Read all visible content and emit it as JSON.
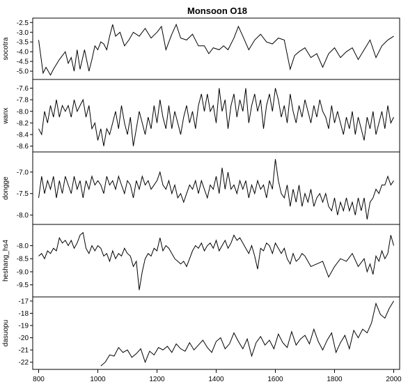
{
  "chart_data": {
    "type": "line",
    "title": "Monsoon O18",
    "xlim": [
      780,
      2020
    ],
    "xticks": [
      800,
      1000,
      1200,
      1400,
      1600,
      1800,
      2000
    ],
    "xtick_labels": [
      "800",
      "1000",
      "1200",
      "1400",
      "1600",
      "1800",
      "2000"
    ],
    "panels": [
      {
        "name": "socotra",
        "ylim": [
          -5.3,
          -2.4
        ],
        "yticks": [
          -2.5,
          -3.0,
          -3.5,
          -4.0,
          -4.5,
          -5.0
        ],
        "ytick_labels": [
          "-2.5",
          "-3.0",
          "-3.5",
          "-4.0",
          "-4.5",
          "-5.0"
        ],
        "x": [
          800,
          815,
          825,
          840,
          850,
          870,
          890,
          900,
          910,
          920,
          930,
          940,
          955,
          970,
          980,
          990,
          1000,
          1010,
          1020,
          1030,
          1040,
          1050,
          1060,
          1075,
          1090,
          1105,
          1120,
          1140,
          1160,
          1180,
          1200,
          1215,
          1230,
          1250,
          1265,
          1280,
          1300,
          1320,
          1340,
          1360,
          1375,
          1390,
          1410,
          1425,
          1440,
          1460,
          1475,
          1490,
          1510,
          1530,
          1550,
          1570,
          1590,
          1610,
          1630,
          1650,
          1665,
          1680,
          1700,
          1720,
          1740,
          1760,
          1780,
          1800,
          1820,
          1840,
          1860,
          1880,
          1900,
          1920,
          1940,
          1960,
          1980,
          2000
        ],
        "y": [
          -3.4,
          -5.1,
          -4.8,
          -5.2,
          -4.9,
          -4.4,
          -4.0,
          -4.6,
          -4.3,
          -5.0,
          -3.9,
          -4.9,
          -3.9,
          -5.0,
          -4.4,
          -3.7,
          -3.9,
          -3.5,
          -3.6,
          -3.9,
          -3.2,
          -2.6,
          -3.2,
          -3.0,
          -3.7,
          -3.4,
          -3.0,
          -3.2,
          -2.8,
          -3.3,
          -3.0,
          -2.7,
          -3.9,
          -3.1,
          -2.6,
          -3.3,
          -3.4,
          -3.1,
          -3.7,
          -3.7,
          -4.1,
          -3.8,
          -3.9,
          -3.7,
          -3.9,
          -3.3,
          -2.7,
          -3.2,
          -3.9,
          -3.4,
          -3.1,
          -3.5,
          -3.6,
          -3.3,
          -3.4,
          -4.9,
          -4.2,
          -4.0,
          -3.8,
          -4.3,
          -4.1,
          -4.8,
          -4.1,
          -3.8,
          -4.3,
          -4.0,
          -3.8,
          -4.4,
          -3.9,
          -3.4,
          -4.3,
          -3.7,
          -3.4,
          -3.2
        ]
      },
      {
        "name": "wanx",
        "ylim": [
          -8.65,
          -7.5
        ],
        "yticks": [
          -7.6,
          -7.8,
          -8.0,
          -8.2,
          -8.4,
          -8.6
        ],
        "ytick_labels": [
          "-7.6",
          "-7.8",
          "-8.0",
          "-8.2",
          "-8.4",
          "-8.6"
        ],
        "x": [
          800,
          810,
          820,
          830,
          840,
          850,
          860,
          870,
          880,
          890,
          900,
          910,
          920,
          930,
          940,
          950,
          960,
          970,
          980,
          990,
          1000,
          1010,
          1020,
          1030,
          1040,
          1050,
          1060,
          1070,
          1080,
          1090,
          1100,
          1110,
          1120,
          1130,
          1140,
          1150,
          1160,
          1170,
          1180,
          1190,
          1200,
          1210,
          1220,
          1230,
          1240,
          1250,
          1260,
          1270,
          1280,
          1290,
          1300,
          1310,
          1320,
          1330,
          1340,
          1350,
          1360,
          1370,
          1380,
          1390,
          1400,
          1410,
          1420,
          1430,
          1440,
          1450,
          1460,
          1470,
          1480,
          1490,
          1500,
          1510,
          1520,
          1530,
          1540,
          1550,
          1560,
          1570,
          1580,
          1590,
          1600,
          1610,
          1620,
          1630,
          1640,
          1650,
          1660,
          1670,
          1680,
          1690,
          1700,
          1710,
          1720,
          1730,
          1740,
          1750,
          1760,
          1770,
          1780,
          1790,
          1800,
          1810,
          1820,
          1830,
          1840,
          1850,
          1860,
          1870,
          1880,
          1890,
          1900,
          1910,
          1920,
          1930,
          1940,
          1950,
          1960,
          1970,
          1980,
          1990,
          2000
        ],
        "y": [
          -8.3,
          -8.4,
          -8.0,
          -8.2,
          -7.9,
          -8.1,
          -7.8,
          -8.1,
          -7.9,
          -8.0,
          -7.9,
          -8.1,
          -7.8,
          -8.0,
          -7.9,
          -7.8,
          -8.1,
          -7.9,
          -8.3,
          -8.2,
          -8.5,
          -8.3,
          -8.6,
          -8.3,
          -8.4,
          -8.2,
          -8.0,
          -8.3,
          -7.9,
          -8.2,
          -8.4,
          -8.1,
          -8.6,
          -8.3,
          -8.0,
          -8.2,
          -8.4,
          -8.1,
          -8.3,
          -7.9,
          -8.2,
          -7.8,
          -8.1,
          -8.3,
          -7.9,
          -8.3,
          -8.0,
          -8.2,
          -8.4,
          -8.1,
          -7.9,
          -8.2,
          -8.0,
          -8.3,
          -7.9,
          -7.7,
          -8.0,
          -7.7,
          -8.0,
          -7.9,
          -8.2,
          -7.6,
          -8.0,
          -7.8,
          -8.3,
          -7.9,
          -7.7,
          -8.1,
          -7.8,
          -8.0,
          -7.6,
          -8.2,
          -7.9,
          -7.7,
          -8.0,
          -7.8,
          -8.3,
          -7.9,
          -7.7,
          -8.0,
          -7.6,
          -7.8,
          -8.1,
          -7.9,
          -8.2,
          -7.7,
          -8.0,
          -8.2,
          -7.9,
          -8.1,
          -7.8,
          -8.0,
          -8.2,
          -7.9,
          -8.1,
          -7.8,
          -8.0,
          -8.1,
          -8.3,
          -7.9,
          -8.2,
          -8.0,
          -8.2,
          -8.4,
          -8.1,
          -8.3,
          -8.0,
          -8.4,
          -8.1,
          -8.3,
          -8.5,
          -8.1,
          -8.3,
          -8.0,
          -8.4,
          -8.2,
          -8.0,
          -8.3,
          -7.9,
          -8.2,
          -8.1
        ]
      },
      {
        "name": "dongge",
        "ylim": [
          -8.15,
          -6.6
        ],
        "yticks": [
          -7.0,
          -7.5,
          -8.0
        ],
        "ytick_labels": [
          "-7.0",
          "-7.5",
          "-8.0"
        ],
        "x": [
          800,
          810,
          820,
          830,
          840,
          850,
          860,
          870,
          880,
          890,
          900,
          910,
          920,
          930,
          940,
          950,
          960,
          970,
          980,
          990,
          1000,
          1010,
          1020,
          1030,
          1040,
          1050,
          1060,
          1070,
          1080,
          1090,
          1100,
          1110,
          1120,
          1130,
          1140,
          1150,
          1160,
          1170,
          1180,
          1190,
          1200,
          1210,
          1220,
          1230,
          1240,
          1250,
          1260,
          1270,
          1280,
          1290,
          1300,
          1310,
          1320,
          1330,
          1340,
          1350,
          1360,
          1370,
          1380,
          1390,
          1400,
          1410,
          1420,
          1430,
          1440,
          1450,
          1460,
          1470,
          1480,
          1490,
          1500,
          1510,
          1520,
          1530,
          1540,
          1550,
          1560,
          1570,
          1580,
          1590,
          1600,
          1610,
          1620,
          1630,
          1640,
          1650,
          1660,
          1670,
          1680,
          1690,
          1700,
          1710,
          1720,
          1730,
          1740,
          1750,
          1760,
          1770,
          1780,
          1790,
          1800,
          1810,
          1820,
          1830,
          1840,
          1850,
          1860,
          1870,
          1880,
          1890,
          1900,
          1910,
          1920,
          1930,
          1940,
          1950,
          1960,
          1970,
          1980,
          1990,
          2000
        ],
        "y": [
          -7.6,
          -7.1,
          -7.5,
          -7.2,
          -7.4,
          -7.1,
          -7.6,
          -7.2,
          -7.5,
          -7.1,
          -7.3,
          -7.5,
          -7.1,
          -7.4,
          -7.2,
          -7.6,
          -7.2,
          -7.4,
          -7.1,
          -7.3,
          -7.2,
          -7.3,
          -7.5,
          -7.1,
          -7.3,
          -7.2,
          -7.4,
          -7.1,
          -7.3,
          -7.5,
          -7.2,
          -7.3,
          -7.6,
          -7.2,
          -7.4,
          -7.1,
          -7.3,
          -7.2,
          -7.4,
          -7.3,
          -7.2,
          -7.0,
          -7.3,
          -7.4,
          -7.2,
          -7.5,
          -7.3,
          -7.6,
          -7.5,
          -7.7,
          -7.5,
          -7.3,
          -7.4,
          -7.2,
          -7.5,
          -7.2,
          -7.4,
          -7.6,
          -7.3,
          -7.4,
          -7.1,
          -7.5,
          -6.9,
          -7.4,
          -7.0,
          -7.4,
          -7.3,
          -7.5,
          -7.2,
          -7.4,
          -7.2,
          -7.6,
          -7.3,
          -7.5,
          -7.2,
          -7.4,
          -7.3,
          -7.6,
          -7.2,
          -7.4,
          -6.7,
          -7.2,
          -7.5,
          -7.6,
          -7.3,
          -7.8,
          -7.4,
          -7.7,
          -7.3,
          -7.8,
          -7.5,
          -7.7,
          -7.4,
          -7.8,
          -7.6,
          -7.5,
          -7.7,
          -7.5,
          -7.8,
          -7.9,
          -7.6,
          -8.0,
          -7.7,
          -7.9,
          -7.6,
          -7.9,
          -7.7,
          -8.0,
          -7.6,
          -7.9,
          -7.6,
          -8.1,
          -7.7,
          -7.6,
          -7.4,
          -7.5,
          -7.3,
          -7.3,
          -7.1,
          -7.3,
          -7.2
        ]
      },
      {
        "name": "heshang_hs4",
        "ylim": [
          -9.85,
          -7.3
        ],
        "yticks": [
          -8.0,
          -8.5,
          -9.0,
          -9.5
        ],
        "ytick_labels": [
          "-8.0",
          "-8.5",
          "-9.0",
          "-9.5"
        ],
        "x": [
          800,
          810,
          820,
          830,
          840,
          850,
          860,
          870,
          880,
          890,
          900,
          910,
          920,
          930,
          940,
          950,
          960,
          970,
          980,
          990,
          1000,
          1010,
          1020,
          1030,
          1040,
          1050,
          1060,
          1070,
          1080,
          1090,
          1100,
          1110,
          1120,
          1130,
          1140,
          1150,
          1160,
          1170,
          1180,
          1190,
          1200,
          1210,
          1220,
          1230,
          1240,
          1250,
          1260,
          1270,
          1280,
          1290,
          1300,
          1310,
          1320,
          1330,
          1340,
          1350,
          1360,
          1370,
          1380,
          1390,
          1400,
          1410,
          1420,
          1430,
          1440,
          1450,
          1460,
          1470,
          1480,
          1490,
          1500,
          1510,
          1520,
          1530,
          1540,
          1550,
          1560,
          1570,
          1580,
          1590,
          1600,
          1610,
          1620,
          1630,
          1640,
          1650,
          1660,
          1670,
          1680,
          1690,
          1700,
          1720,
          1740,
          1760,
          1780,
          1800,
          1820,
          1840,
          1860,
          1880,
          1900,
          1910,
          1920,
          1930,
          1940,
          1950,
          1960,
          1970,
          1980,
          1990,
          2000
        ],
        "y": [
          -8.4,
          -8.3,
          -8.5,
          -8.2,
          -8.3,
          -8.1,
          -8.2,
          -7.7,
          -7.9,
          -7.8,
          -8.0,
          -7.8,
          -8.1,
          -7.9,
          -7.6,
          -7.5,
          -8.1,
          -8.3,
          -8.0,
          -8.2,
          -8.0,
          -8.1,
          -8.4,
          -8.3,
          -8.6,
          -8.2,
          -8.5,
          -8.3,
          -8.4,
          -8.1,
          -8.3,
          -8.4,
          -8.8,
          -8.6,
          -9.7,
          -9.0,
          -8.5,
          -8.3,
          -8.4,
          -8.1,
          -8.2,
          -7.7,
          -8.2,
          -8.0,
          -8.1,
          -8.3,
          -8.5,
          -8.6,
          -8.7,
          -8.6,
          -8.8,
          -8.5,
          -8.2,
          -8.0,
          -8.1,
          -7.9,
          -8.2,
          -8.0,
          -7.9,
          -8.1,
          -7.8,
          -8.2,
          -8.0,
          -7.8,
          -8.1,
          -7.9,
          -7.6,
          -7.8,
          -7.7,
          -7.9,
          -8.1,
          -8.3,
          -8.0,
          -8.4,
          -8.9,
          -8.1,
          -8.2,
          -7.9,
          -8.0,
          -8.3,
          -7.9,
          -8.1,
          -8.3,
          -8.1,
          -8.5,
          -8.7,
          -8.3,
          -8.6,
          -8.5,
          -8.3,
          -8.4,
          -8.8,
          -8.7,
          -8.6,
          -9.2,
          -8.8,
          -8.5,
          -8.6,
          -8.3,
          -8.8,
          -8.5,
          -9.0,
          -8.7,
          -9.1,
          -8.4,
          -8.6,
          -8.2,
          -8.5,
          -8.3,
          -7.6,
          -8.0
        ]
      },
      {
        "name": "dasuopu",
        "ylim": [
          -22.35,
          -16.9
        ],
        "yticks": [
          -17,
          -18,
          -19,
          -20,
          -21,
          -22
        ],
        "ytick_labels": [
          "-17",
          "-18",
          "-19",
          "-20",
          "-21",
          "-22"
        ],
        "x": [
          1010,
          1025,
          1040,
          1055,
          1070,
          1085,
          1100,
          1115,
          1130,
          1145,
          1160,
          1175,
          1190,
          1205,
          1220,
          1235,
          1250,
          1265,
          1280,
          1295,
          1310,
          1325,
          1340,
          1355,
          1370,
          1385,
          1400,
          1415,
          1430,
          1445,
          1460,
          1475,
          1490,
          1505,
          1520,
          1535,
          1550,
          1565,
          1580,
          1595,
          1610,
          1625,
          1640,
          1655,
          1670,
          1685,
          1700,
          1715,
          1730,
          1745,
          1760,
          1775,
          1790,
          1805,
          1820,
          1835,
          1850,
          1865,
          1880,
          1895,
          1910,
          1925,
          1940,
          1955,
          1970,
          1985,
          2000
        ],
        "y": [
          -22.3,
          -22.0,
          -21.4,
          -21.5,
          -20.8,
          -21.2,
          -21.0,
          -21.6,
          -21.3,
          -20.9,
          -22.0,
          -21.1,
          -21.4,
          -20.8,
          -21.0,
          -20.7,
          -21.2,
          -20.5,
          -20.9,
          -21.1,
          -20.4,
          -21.0,
          -20.6,
          -20.2,
          -20.8,
          -21.2,
          -20.3,
          -20.0,
          -20.9,
          -20.5,
          -19.6,
          -20.3,
          -20.9,
          -20.1,
          -21.5,
          -20.4,
          -19.9,
          -20.6,
          -20.2,
          -20.9,
          -19.7,
          -20.4,
          -20.8,
          -19.5,
          -20.6,
          -20.1,
          -19.8,
          -20.5,
          -19.3,
          -20.3,
          -21.0,
          -20.2,
          -19.6,
          -21.2,
          -20.4,
          -19.8,
          -20.9,
          -19.4,
          -20.0,
          -19.3,
          -19.6,
          -18.8,
          -17.2,
          -18.1,
          -18.4,
          -17.6,
          -17.0
        ]
      }
    ]
  }
}
